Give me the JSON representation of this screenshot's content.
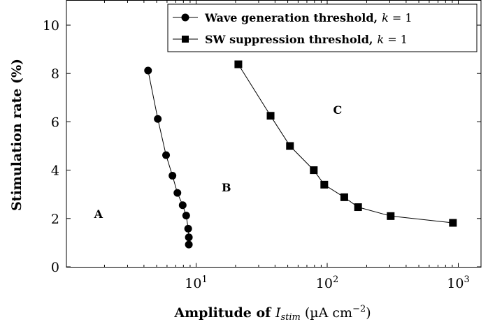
{
  "chart_data": {
    "type": "line",
    "xlabel": "Amplitude of I_stim (µA cm⁻²)",
    "xlabel_parts": {
      "prefix": "Amplitude of ",
      "var": "I",
      "sub": "stim",
      "unit_open": " (µA cm",
      "sup": "−2",
      "unit_close": ")"
    },
    "ylabel": "Stimulation rate (%)",
    "xscale": "log",
    "xlim": [
      1,
      1300
    ],
    "ylim": [
      0,
      11
    ],
    "x_ticks": [
      {
        "value": 10,
        "base": "10",
        "exp": "1"
      },
      {
        "value": 100,
        "base": "10",
        "exp": "2"
      },
      {
        "value": 1000,
        "base": "10",
        "exp": "3"
      }
    ],
    "y_ticks": [
      0,
      2,
      4,
      6,
      8,
      10
    ],
    "grid": false,
    "legend_position": "top-right",
    "series": [
      {
        "name": "Wave generation threshold, k = 1",
        "name_main": "Wave generation threshold,",
        "name_var": "k",
        "name_eq": " = 1",
        "marker": "circle",
        "color": "#000000",
        "points": [
          [
            4.3,
            8.12
          ],
          [
            5.1,
            6.12
          ],
          [
            5.9,
            4.62
          ],
          [
            6.6,
            3.77
          ],
          [
            7.2,
            3.06
          ],
          [
            7.9,
            2.55
          ],
          [
            8.4,
            2.12
          ],
          [
            8.7,
            1.58
          ],
          [
            8.8,
            1.22
          ],
          [
            8.8,
            0.92
          ]
        ]
      },
      {
        "name": "SW suppression threshold, k = 1",
        "name_main": "SW suppression threshold,",
        "name_var": "k",
        "name_eq": " = 1",
        "marker": "square",
        "color": "#000000",
        "points": [
          [
            21,
            8.38
          ],
          [
            37,
            6.25
          ],
          [
            52,
            5.0
          ],
          [
            79,
            4.0
          ],
          [
            95,
            3.4
          ],
          [
            135,
            2.88
          ],
          [
            172,
            2.47
          ],
          [
            305,
            2.1
          ],
          [
            910,
            1.82
          ]
        ]
      }
    ],
    "annotations": [
      {
        "text": "A",
        "x": 1.8,
        "y": 2.2
      },
      {
        "text": "B",
        "x": 17,
        "y": 3.3
      },
      {
        "text": "C",
        "x": 120,
        "y": 6.5
      }
    ]
  }
}
